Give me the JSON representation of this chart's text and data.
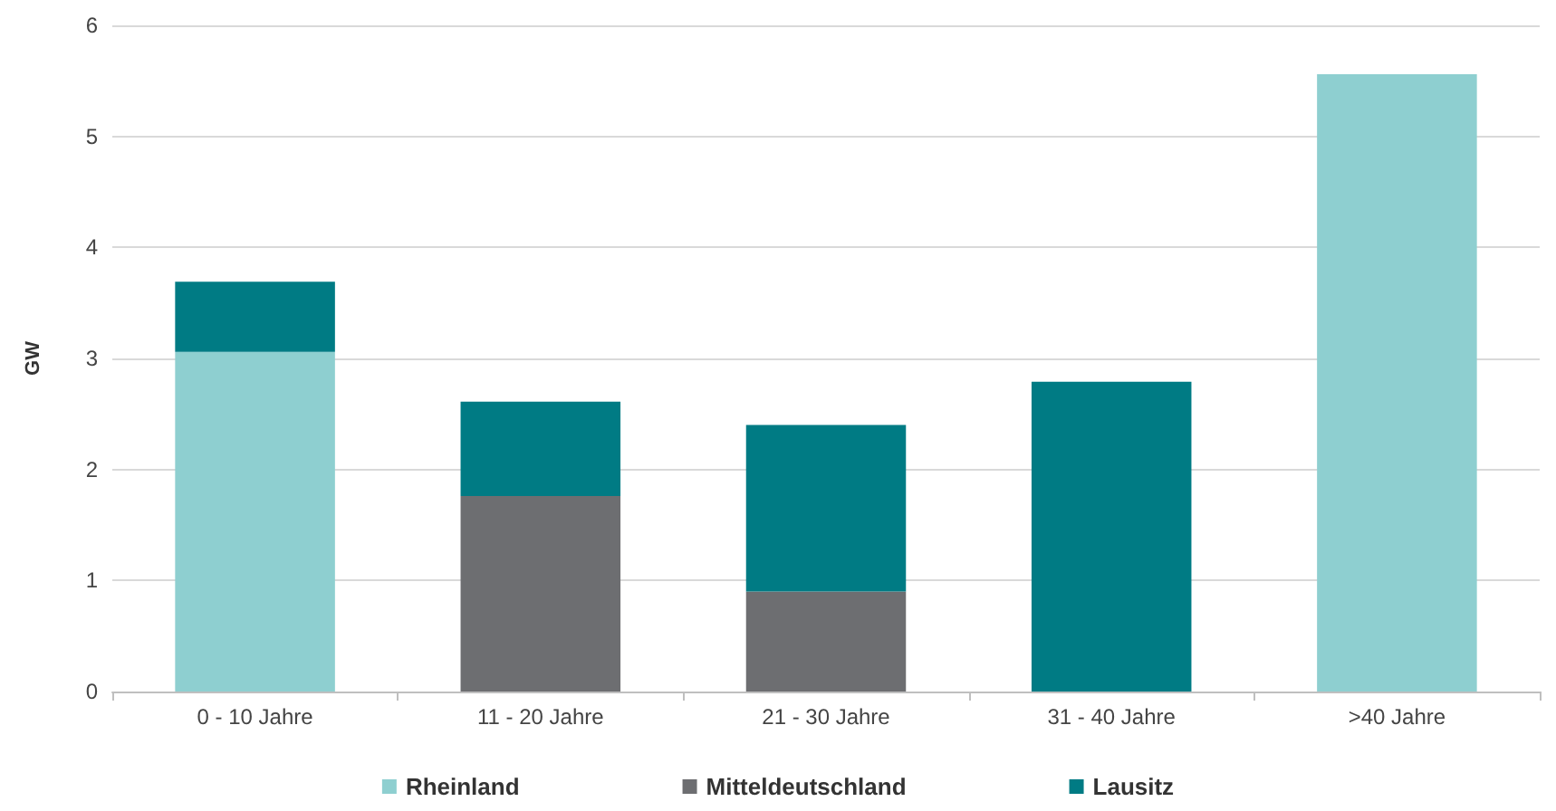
{
  "chart_data": {
    "type": "bar",
    "stacked": true,
    "ylabel": "GW",
    "categories": [
      "0 - 10 Jahre",
      "11 - 20 Jahre",
      "21 - 30 Jahre",
      "31 - 40 Jahre",
      ">40 Jahre"
    ],
    "series": [
      {
        "name": "Rheinland",
        "color": "#8ecfd0",
        "values": [
          3.06,
          null,
          null,
          null,
          5.56
        ]
      },
      {
        "name": "Mitteldeutschland",
        "color": "#6d6e71",
        "values": [
          null,
          1.76,
          0.9,
          null,
          null
        ]
      },
      {
        "name": "Lausitz",
        "color": "#007b84",
        "values": [
          0.63,
          0.85,
          1.5,
          2.79,
          null
        ]
      }
    ],
    "ylim": [
      0,
      6
    ],
    "yticks": [
      0,
      1,
      2,
      3,
      4,
      5,
      6
    ],
    "grid": "y",
    "legend": "bottom"
  }
}
